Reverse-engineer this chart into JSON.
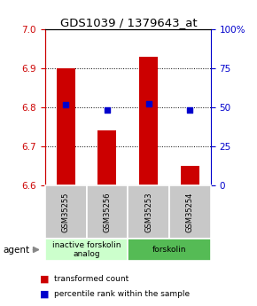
{
  "title": "GDS1039 / 1379643_at",
  "samples": [
    "GSM35255",
    "GSM35256",
    "GSM35253",
    "GSM35254"
  ],
  "bar_values": [
    6.9,
    6.74,
    6.93,
    6.65
  ],
  "bar_base": 6.6,
  "percentile_values": [
    6.806,
    6.793,
    6.808,
    6.793
  ],
  "ylim": [
    6.6,
    7.0
  ],
  "yticks_left": [
    6.6,
    6.7,
    6.8,
    6.9,
    7.0
  ],
  "yticks_right": [
    0,
    25,
    50,
    75,
    100
  ],
  "yticks_right_labels": [
    "0",
    "25",
    "50",
    "75",
    "100%"
  ],
  "bar_color": "#cc0000",
  "percentile_color": "#0000cc",
  "groups": [
    {
      "label": "inactive forskolin\nanalog",
      "samples": [
        0,
        1
      ],
      "color": "#ccffcc"
    },
    {
      "label": "forskolin",
      "samples": [
        2,
        3
      ],
      "color": "#55bb55"
    }
  ],
  "agent_label": "agent",
  "legend_red": "transformed count",
  "legend_blue": "percentile rank within the sample",
  "bar_width": 0.45,
  "left_tick_color": "#cc0000",
  "right_tick_color": "#0000cc"
}
